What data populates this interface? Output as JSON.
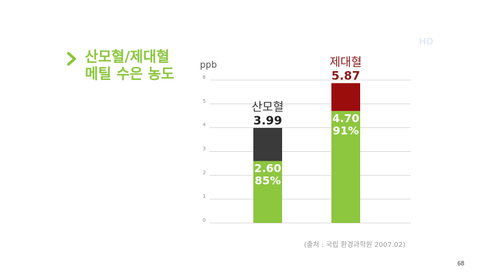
{
  "hd_badge": "HD",
  "title": {
    "line1": "산모혈/제대혈",
    "line2": "메틸 수은 농도"
  },
  "source": "(출처 : 국립 환경과학원 2007.02)",
  "page_number": "68",
  "colors": {
    "accent_green": "#8cc63e",
    "bar_green": "#8dc63f",
    "maternal_top": "#3a3a3a",
    "cord_top": "#9b0d0d",
    "cord_label": "#8b1a1a",
    "grid": "#d8d8d8"
  },
  "chart_data": {
    "type": "bar",
    "ylabel": "ppb",
    "ylim": [
      0,
      6
    ],
    "y_ticks": [
      "0",
      "1",
      "2",
      "3",
      "4",
      "5",
      "6"
    ],
    "grid": true,
    "bars": [
      {
        "name": "산모혈",
        "total": 3.99,
        "total_label": "3.99",
        "green_value": 2.6,
        "green_value_label": "2.60",
        "green_percent_label": "85%"
      },
      {
        "name": "제대혈",
        "total": 5.87,
        "total_label": "5.87",
        "green_value": 4.7,
        "green_value_label": "4.70",
        "green_percent_label": "91%"
      }
    ]
  }
}
